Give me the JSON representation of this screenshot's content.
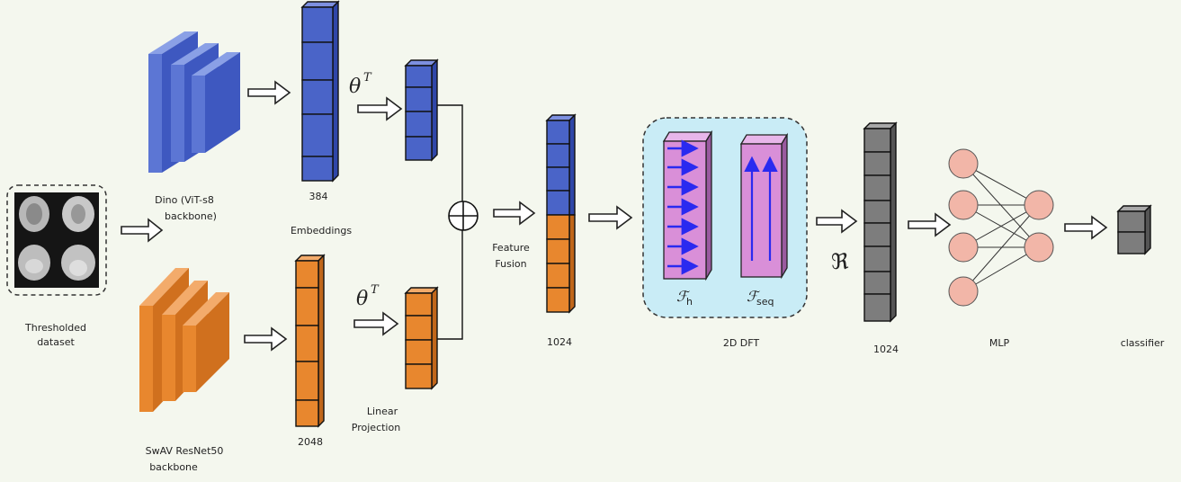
{
  "labels": {
    "dataset": [
      "Thresholded",
      "dataset"
    ],
    "dino": [
      "Dino (ViT-s8",
      "backbone)"
    ],
    "swav": [
      "SwAV ResNet50",
      "backbone"
    ],
    "dim_dino": "384",
    "dim_swav": "2048",
    "embeddings": "Embeddings",
    "theta_top": "θ",
    "theta_bottom": "θ",
    "theta_sup": "T",
    "linear": [
      "Linear",
      "Projection"
    ],
    "fusion": [
      "Feature",
      "Fusion"
    ],
    "dim_fused": "1024",
    "dft": "2D DFT",
    "fh": "ℱ",
    "fh_sub": "h",
    "fseq": "ℱ",
    "fseq_sub": "seq",
    "real": "ℜ",
    "dim_real": "1024",
    "mlp": "MLP",
    "classifier": "classifier"
  },
  "colors": {
    "blue": "#4a64c8",
    "orange": "#e8872e",
    "gray": "#7d7d7d",
    "purple": "#d98fd8",
    "node": "#f2b6a8",
    "panel": "#c9ecf6"
  }
}
